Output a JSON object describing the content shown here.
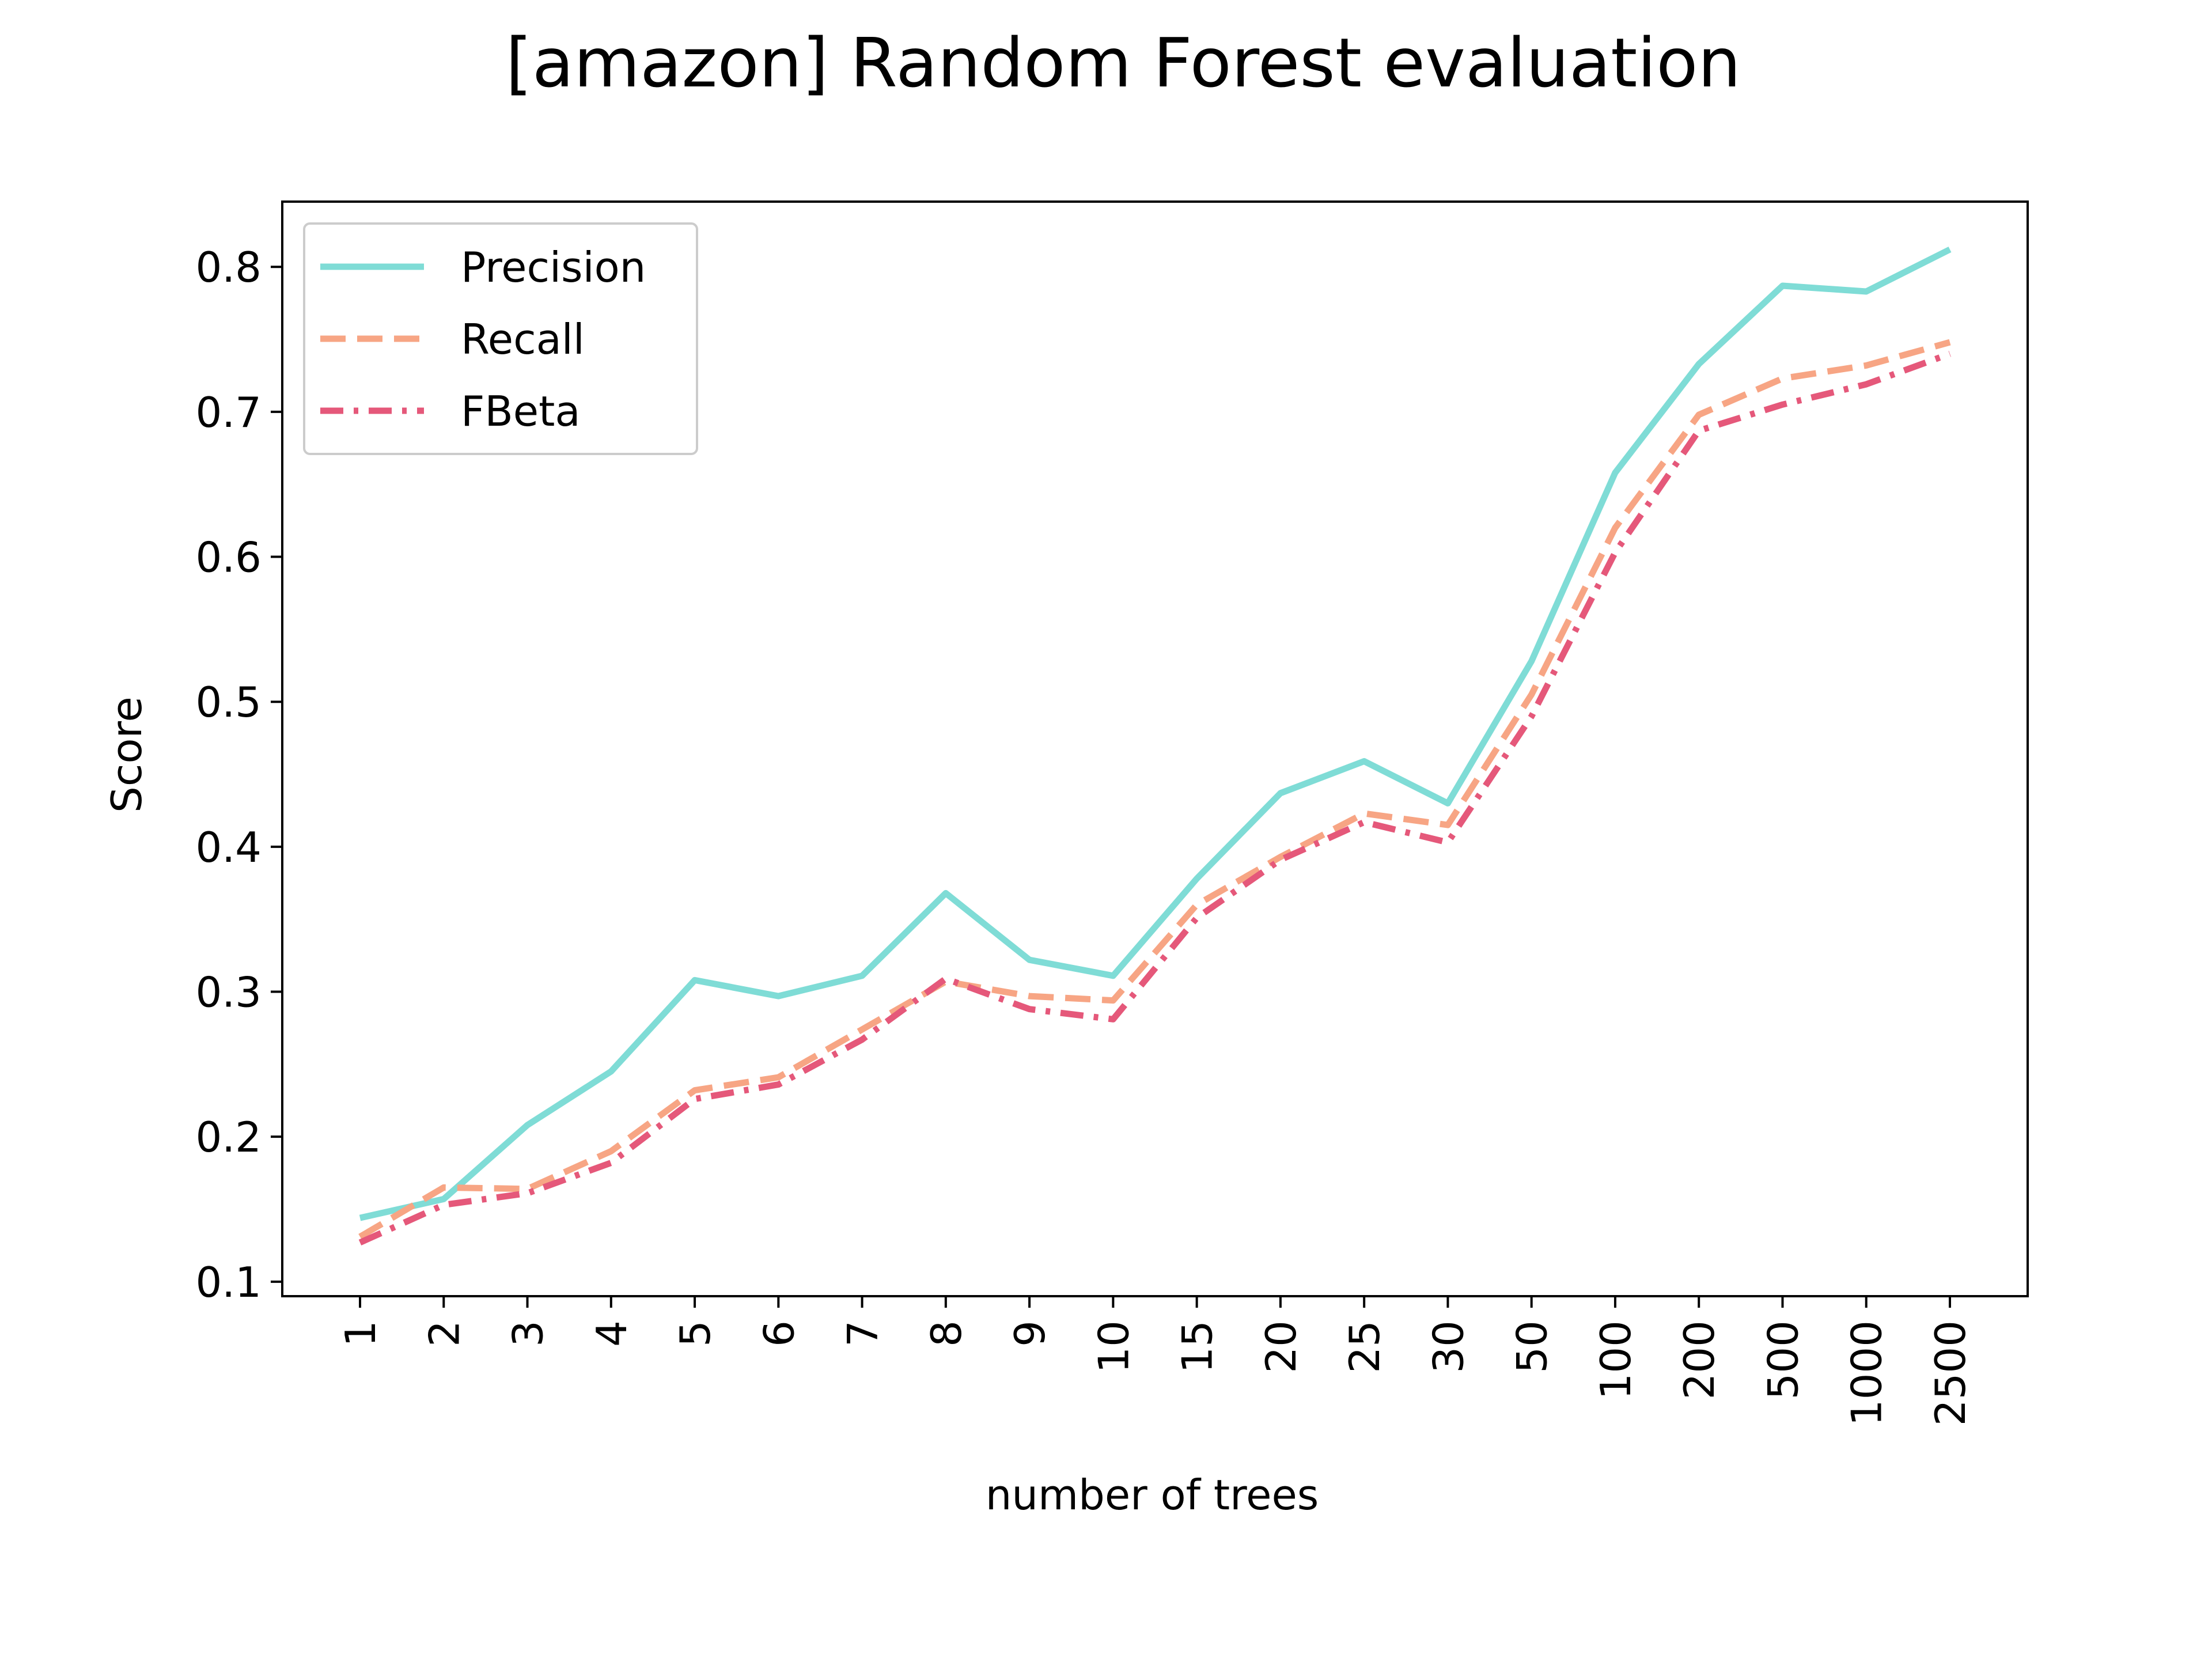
{
  "chart_data": {
    "type": "line",
    "title": "[amazon] Random Forest evaluation",
    "xlabel": "number of trees",
    "ylabel": "Score",
    "categories": [
      "1",
      "2",
      "3",
      "4",
      "5",
      "6",
      "7",
      "8",
      "9",
      "10",
      "15",
      "20",
      "25",
      "30",
      "50",
      "100",
      "200",
      "500",
      "1000",
      "2500"
    ],
    "ylim": [
      0.09,
      0.845
    ],
    "yticks": [
      "0.1",
      "0.2",
      "0.3",
      "0.4",
      "0.5",
      "0.6",
      "0.7",
      "0.8"
    ],
    "grid": false,
    "legend_position": "upper-left",
    "series": [
      {
        "name": "Precision",
        "color": "#7fdcd6",
        "style": "solid",
        "values": [
          0.144,
          0.157,
          0.208,
          0.245,
          0.308,
          0.297,
          0.311,
          0.368,
          0.322,
          0.311,
          0.378,
          0.437,
          0.459,
          0.43,
          0.528,
          0.658,
          0.733,
          0.787,
          0.783,
          0.812
        ]
      },
      {
        "name": "Recall",
        "color": "#f7a584",
        "style": "dashed",
        "values": [
          0.131,
          0.165,
          0.164,
          0.19,
          0.232,
          0.241,
          0.274,
          0.307,
          0.297,
          0.294,
          0.36,
          0.393,
          0.423,
          0.415,
          0.505,
          0.62,
          0.698,
          0.723,
          0.732,
          0.748
        ]
      },
      {
        "name": "FBeta",
        "color": "#e5587a",
        "style": "dashdot",
        "values": [
          0.127,
          0.153,
          0.161,
          0.182,
          0.226,
          0.236,
          0.267,
          0.309,
          0.288,
          0.281,
          0.351,
          0.391,
          0.417,
          0.403,
          0.49,
          0.603,
          0.687,
          0.705,
          0.719,
          0.74
        ]
      }
    ]
  }
}
